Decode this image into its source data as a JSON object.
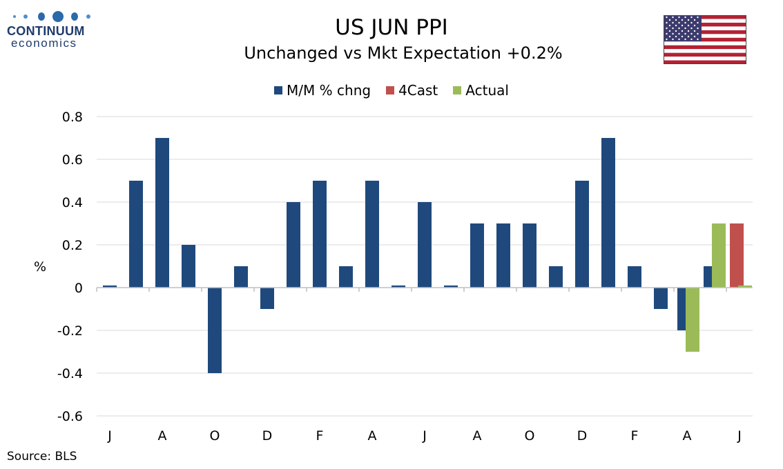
{
  "logo": {
    "name": "CONTINUUM",
    "sub": "economics"
  },
  "title": "US JUN PPI",
  "subtitle": "Unchanged vs Mkt Expectation +0.2%",
  "source": "Source: BLS",
  "colors": {
    "mm": "#1f497d",
    "forecast": "#c0504d",
    "actual": "#9bbb59",
    "grid": "#d9d9d9",
    "flag_red": "#b22234",
    "flag_blue": "#3c3b6e"
  },
  "flag_icon": "us-flag-icon",
  "chart_data": {
    "type": "bar",
    "ylabel": "%",
    "ylim": [
      -0.6,
      0.8
    ],
    "yticks": [
      0.8,
      0.6,
      0.4,
      0.2,
      0,
      -0.2,
      -0.4,
      -0.6
    ],
    "ytick_labels": [
      "0.8",
      "0.6",
      "0.4",
      "0.2",
      "0",
      "-0.2",
      "-0.4",
      "-0.6"
    ],
    "grid": true,
    "legend_position": "top-center",
    "xtick_labels": [
      "J",
      "A",
      "O",
      "D",
      "F",
      "A",
      "J",
      "A",
      "O",
      "D",
      "F",
      "A",
      "J"
    ],
    "num_categories": 25,
    "series": [
      {
        "name": "M/M % chng",
        "color": "#1f497d",
        "values": [
          0.01,
          0.5,
          0.7,
          0.2,
          -0.4,
          0.1,
          -0.1,
          0.4,
          0.5,
          0.1,
          0.5,
          0.01,
          0.4,
          0.01,
          0.3,
          0.3,
          0.3,
          0.1,
          0.5,
          0.7,
          0.1,
          -0.1,
          -0.2,
          0.1,
          null
        ]
      },
      {
        "name": "4Cast",
        "color": "#c0504d",
        "values": [
          null,
          null,
          null,
          null,
          null,
          null,
          null,
          null,
          null,
          null,
          null,
          null,
          null,
          null,
          null,
          null,
          null,
          null,
          null,
          null,
          null,
          null,
          null,
          null,
          0.3
        ]
      },
      {
        "name": "Actual",
        "color": "#9bbb59",
        "values": [
          null,
          null,
          null,
          null,
          null,
          null,
          null,
          null,
          null,
          null,
          null,
          null,
          null,
          null,
          null,
          null,
          null,
          null,
          null,
          null,
          null,
          null,
          -0.3,
          0.3,
          0.01
        ]
      }
    ]
  }
}
